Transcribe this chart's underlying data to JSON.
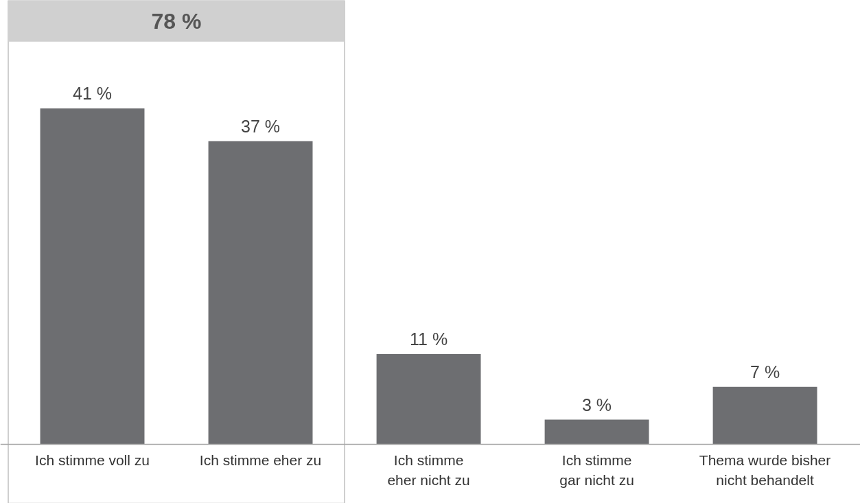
{
  "chart_data": {
    "type": "bar",
    "categories": [
      "Ich stimme voll zu",
      "Ich stimme eher zu",
      "Ich stimme eher nicht zu",
      "Ich stimme gar nicht zu",
      "Thema wurde bisher nicht behandelt"
    ],
    "values": [
      41,
      37,
      11,
      3,
      7
    ],
    "value_labels": [
      "41 %",
      "37 %",
      "11 %",
      "3 %",
      "7 %"
    ],
    "color": "#6d6e71",
    "annotations": [
      "78 %"
    ],
    "grid": false
  }
}
